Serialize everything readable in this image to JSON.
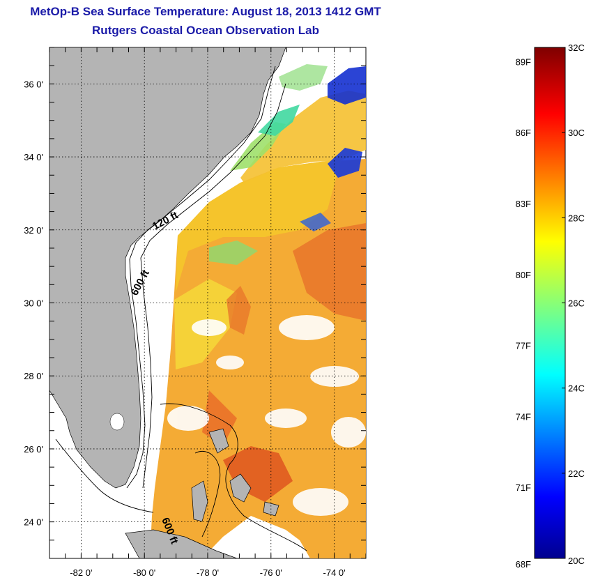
{
  "header": {
    "title": "MetOp-B Sea Surface Temperature:  August 18, 2013 1412 GMT",
    "subtitle": "Rutgers Coastal Ocean Observation Lab"
  },
  "map": {
    "lon_ticks": [
      "-82 0'",
      "-80 0'",
      "-78 0'",
      "-76 0'",
      "-74 0'"
    ],
    "lat_ticks": [
      "36 0'",
      "34 0'",
      "32 0'",
      "30 0'",
      "28 0'",
      "26 0'",
      "24 0'"
    ],
    "contour_labels": [
      "120 ft",
      "600 ft",
      "600 ft"
    ],
    "land_color": "#b4b4b4",
    "grid": "dotted"
  },
  "colorbar": {
    "fahrenheit_labels": [
      "89F",
      "86F",
      "83F",
      "80F",
      "77F",
      "74F",
      "71F",
      "68F"
    ],
    "celsius_labels": [
      "32C",
      "30C",
      "28C",
      "26C",
      "24C",
      "22C",
      "20C"
    ],
    "colormap": "jet",
    "range_c": [
      20,
      32
    ],
    "range_f": [
      68,
      89.6
    ]
  },
  "colors": {
    "title": "#1a1aa8",
    "land": "#b4b4b4",
    "warm": "#f29a1e",
    "hot": "#e4561a",
    "mild": "#f5d21a",
    "cool": "#3fd09a",
    "cold": "#1432c8"
  }
}
